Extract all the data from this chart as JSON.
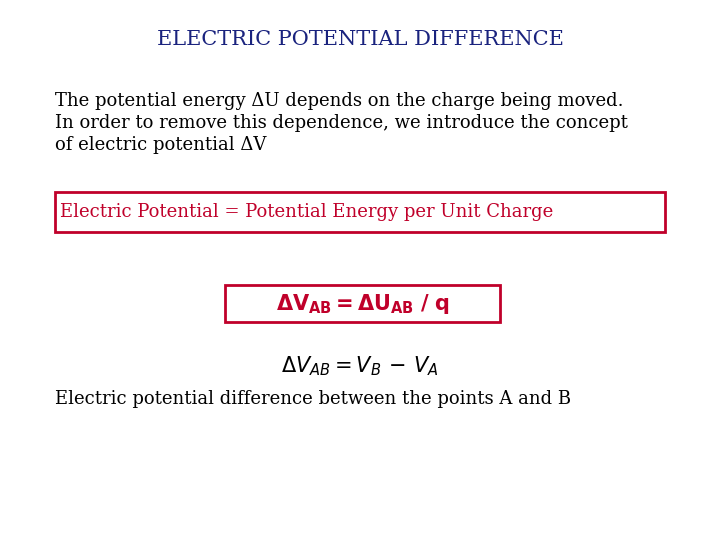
{
  "title": "ELECTRIC POTENTIAL DIFFERENCE",
  "title_color": "#1a237e",
  "title_fontsize": 15,
  "body_text_color": "#000000",
  "red_color": "#c0002a",
  "body_fontsize": 13,
  "para_line1": "The potential energy ΔU depends on the charge being moved.",
  "para_line2": "In order to remove this dependence, we introduce the concept",
  "para_line3": "of electric potential ΔV",
  "box1_text": "Electric Potential = Potential Energy per Unit Charge",
  "bottom_text": "Electric potential difference between the points A and B",
  "bg_color": "#ffffff"
}
